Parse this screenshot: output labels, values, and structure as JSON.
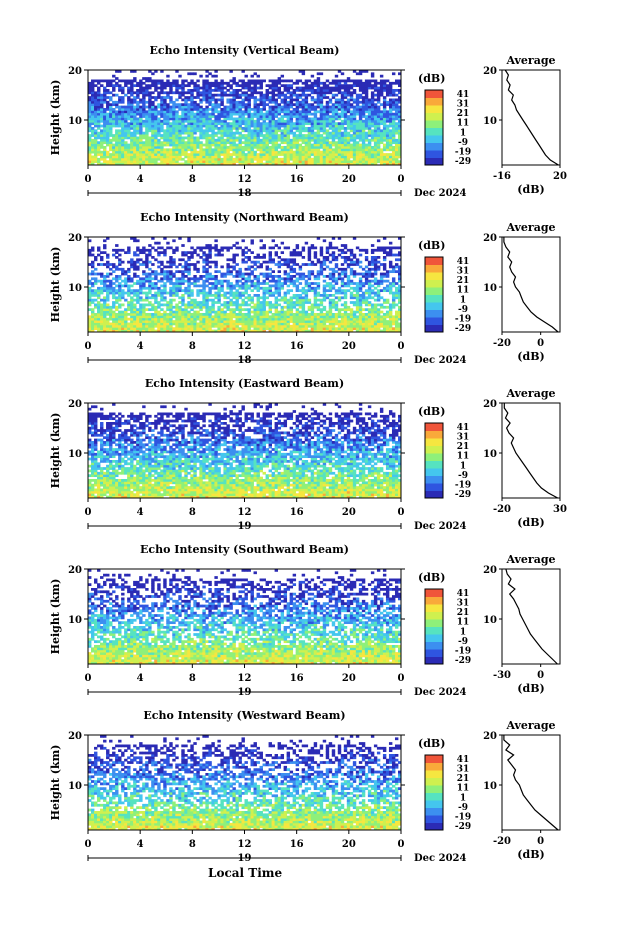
{
  "figure": {
    "xlabel_bottom": "Local Time",
    "date_label": "Dec 2024",
    "colorbar_unit": "(dB)",
    "colorbar_ticks": [
      "41",
      "31",
      "21",
      "11",
      "1",
      "-9",
      "-19",
      "-29"
    ],
    "colormap": [
      "#2b2bb5",
      "#2f55e0",
      "#3c8ff0",
      "#44c6ee",
      "#56e3c0",
      "#8ef07a",
      "#cff04f",
      "#f6e640",
      "#f9a93a",
      "#f0553a"
    ]
  },
  "chart_data": [
    {
      "type": "heatmap",
      "title": "Echo Intensity (Vertical Beam)",
      "ylabel": "Height (km)",
      "x_ticks": [
        "0",
        "4",
        "8",
        "12",
        "16",
        "20",
        "0"
      ],
      "xlim": [
        0,
        24
      ],
      "ylim": [
        1,
        20
      ],
      "y_ticks": [
        "20",
        "10"
      ],
      "day_label": "18",
      "clim": [
        -29,
        41
      ],
      "profile": {
        "title": "Average",
        "xlabel": "(dB)",
        "x_ticks": [
          "-16",
          "20"
        ],
        "xlim": [
          -16,
          20
        ],
        "heights": [
          1,
          2,
          3,
          4,
          5,
          6,
          7,
          8,
          9,
          10,
          11,
          12,
          13,
          14,
          15,
          16,
          17,
          18,
          19,
          20
        ],
        "values": [
          19,
          14,
          11,
          9,
          7,
          5,
          3,
          1,
          -1,
          -3,
          -5,
          -7,
          -8,
          -10,
          -9,
          -12,
          -11,
          -13,
          -12,
          -14
        ]
      }
    },
    {
      "type": "heatmap",
      "title": "Echo Intensity (Northward Beam)",
      "ylabel": "Height (km)",
      "x_ticks": [
        "0",
        "4",
        "8",
        "12",
        "16",
        "20",
        "0"
      ],
      "xlim": [
        0,
        24
      ],
      "ylim": [
        1,
        20
      ],
      "y_ticks": [
        "20",
        "10"
      ],
      "day_label": "18",
      "clim": [
        -29,
        41
      ],
      "profile": {
        "title": "Average",
        "xlabel": "(dB)",
        "x_ticks": [
          "-20",
          "0"
        ],
        "xlim": [
          -20,
          10
        ],
        "heights": [
          1,
          2,
          3,
          4,
          5,
          6,
          7,
          8,
          9,
          10,
          11,
          12,
          13,
          14,
          15,
          16,
          17,
          18,
          19,
          20
        ],
        "values": [
          9,
          6,
          2,
          -2,
          -5,
          -7,
          -9,
          -10,
          -11,
          -13,
          -14,
          -13,
          -15,
          -16,
          -15,
          -17,
          -16,
          -18,
          -19,
          -19
        ]
      }
    },
    {
      "type": "heatmap",
      "title": "Echo Intensity (Eastward Beam)",
      "ylabel": "Height (km)",
      "x_ticks": [
        "0",
        "4",
        "8",
        "12",
        "16",
        "20",
        "0"
      ],
      "xlim": [
        0,
        24
      ],
      "ylim": [
        1,
        20
      ],
      "y_ticks": [
        "20",
        "10"
      ],
      "day_label": "19",
      "clim": [
        -29,
        41
      ],
      "profile": {
        "title": "Average",
        "xlabel": "(dB)",
        "x_ticks": [
          "-20",
          "30"
        ],
        "xlim": [
          -20,
          30
        ],
        "heights": [
          1,
          2,
          3,
          4,
          5,
          6,
          7,
          8,
          9,
          10,
          11,
          12,
          13,
          14,
          15,
          16,
          17,
          18,
          19,
          20
        ],
        "values": [
          28,
          20,
          14,
          10,
          7,
          4,
          1,
          -2,
          -5,
          -8,
          -10,
          -12,
          -10,
          -14,
          -16,
          -13,
          -17,
          -15,
          -18,
          -18
        ]
      }
    },
    {
      "type": "heatmap",
      "title": "Echo Intensity (Southward Beam)",
      "ylabel": "Height (km)",
      "x_ticks": [
        "0",
        "4",
        "8",
        "12",
        "16",
        "20",
        "0"
      ],
      "xlim": [
        0,
        24
      ],
      "ylim": [
        1,
        20
      ],
      "y_ticks": [
        "20",
        "10"
      ],
      "day_label": "19",
      "clim": [
        -29,
        41
      ],
      "profile": {
        "title": "Average",
        "xlabel": "(dB)",
        "x_ticks": [
          "-30",
          "0"
        ],
        "xlim": [
          -30,
          15
        ],
        "heights": [
          1,
          2,
          3,
          4,
          5,
          6,
          7,
          8,
          9,
          10,
          11,
          12,
          13,
          14,
          15,
          16,
          17,
          18,
          19,
          20
        ],
        "values": [
          13,
          9,
          5,
          1,
          -2,
          -5,
          -8,
          -10,
          -12,
          -14,
          -16,
          -17,
          -19,
          -21,
          -24,
          -20,
          -25,
          -23,
          -26,
          -27
        ]
      }
    },
    {
      "type": "heatmap",
      "title": "Echo Intensity (Westward Beam)",
      "ylabel": "Height (km)",
      "x_ticks": [
        "0",
        "4",
        "8",
        "12",
        "16",
        "20",
        "0"
      ],
      "xlim": [
        0,
        24
      ],
      "ylim": [
        1,
        20
      ],
      "y_ticks": [
        "20",
        "10"
      ],
      "day_label": "19",
      "clim": [
        -29,
        41
      ],
      "profile": {
        "title": "Average",
        "xlabel": "(dB)",
        "x_ticks": [
          "-20",
          "0"
        ],
        "xlim": [
          -20,
          10
        ],
        "heights": [
          1,
          2,
          3,
          4,
          5,
          6,
          7,
          8,
          9,
          10,
          11,
          12,
          13,
          14,
          15,
          16,
          17,
          18,
          19,
          20
        ],
        "values": [
          9,
          6,
          3,
          0,
          -3,
          -5,
          -7,
          -9,
          -10,
          -11,
          -13,
          -14,
          -13,
          -15,
          -17,
          -14,
          -18,
          -16,
          -19,
          -19
        ]
      }
    }
  ]
}
